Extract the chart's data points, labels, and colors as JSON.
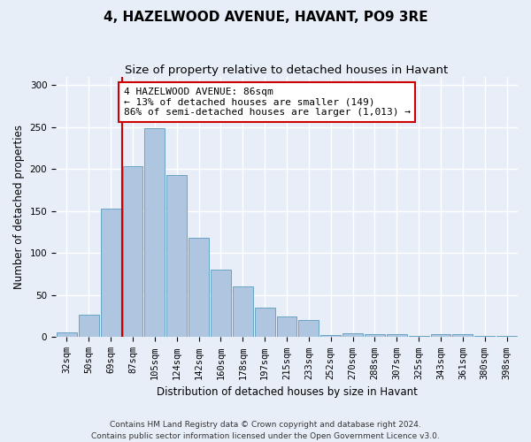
{
  "title": "4, HAZELWOOD AVENUE, HAVANT, PO9 3RE",
  "subtitle": "Size of property relative to detached houses in Havant",
  "xlabel": "Distribution of detached houses by size in Havant",
  "ylabel": "Number of detached properties",
  "categories": [
    "32sqm",
    "50sqm",
    "69sqm",
    "87sqm",
    "105sqm",
    "124sqm",
    "142sqm",
    "160sqm",
    "178sqm",
    "197sqm",
    "215sqm",
    "233sqm",
    "252sqm",
    "270sqm",
    "288sqm",
    "307sqm",
    "325sqm",
    "343sqm",
    "361sqm",
    "380sqm",
    "398sqm"
  ],
  "values": [
    6,
    27,
    153,
    203,
    249,
    193,
    118,
    80,
    60,
    35,
    25,
    20,
    3,
    5,
    4,
    4,
    1,
    4,
    4,
    2,
    2
  ],
  "bar_color": "#aec6e0",
  "bar_edge_color": "#5a9abf",
  "vline_color": "#cc0000",
  "vline_x_index": 3,
  "annotation_text": "4 HAZELWOOD AVENUE: 86sqm\n← 13% of detached houses are smaller (149)\n86% of semi-detached houses are larger (1,013) →",
  "annotation_box_facecolor": "#ffffff",
  "annotation_box_edgecolor": "#cc0000",
  "ylim": [
    0,
    310
  ],
  "yticks": [
    0,
    50,
    100,
    150,
    200,
    250,
    300
  ],
  "footnote": "Contains HM Land Registry data © Crown copyright and database right 2024.\nContains public sector information licensed under the Open Government Licence v3.0.",
  "background_color": "#e8eef8",
  "grid_color": "#ffffff",
  "title_fontsize": 11,
  "subtitle_fontsize": 9.5,
  "ylabel_fontsize": 8.5,
  "xlabel_fontsize": 8.5,
  "tick_fontsize": 7.5,
  "annotation_fontsize": 8,
  "footnote_fontsize": 6.5
}
